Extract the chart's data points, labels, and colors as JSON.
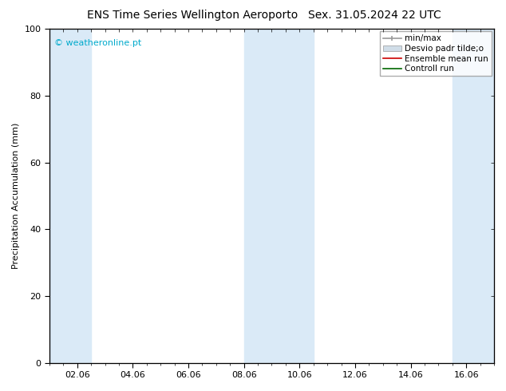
{
  "title_left": "ENS Time Series Wellington Aeroporto",
  "title_right": "Sex. 31.05.2024 22 UTC",
  "ylabel": "Precipitation Accumulation (mm)",
  "copyright": "© weatheronline.pt",
  "copyright_color": "#00aacc",
  "ylim": [
    0,
    100
  ],
  "yticks": [
    0,
    20,
    40,
    60,
    80,
    100
  ],
  "xlim": [
    0,
    16
  ],
  "xtick_labels": [
    "02.06",
    "04.06",
    "06.06",
    "08.06",
    "10.06",
    "12.06",
    "14.06",
    "16.06"
  ],
  "xtick_positions": [
    1,
    3,
    5,
    7,
    9,
    11,
    13,
    15
  ],
  "shaded_bands": [
    {
      "x_start": 0,
      "x_end": 1.5,
      "color": "#daeaf7"
    },
    {
      "x_start": 7,
      "x_end": 9.5,
      "color": "#daeaf7"
    },
    {
      "x_start": 14.5,
      "x_end": 16,
      "color": "#daeaf7"
    }
  ],
  "legend_labels": [
    "min/max",
    "Desvio padr tilde;o",
    "Ensemble mean run",
    "Controll run"
  ],
  "background_color": "#ffffff",
  "title_fontsize": 10,
  "axis_fontsize": 8,
  "legend_fontsize": 7.5
}
